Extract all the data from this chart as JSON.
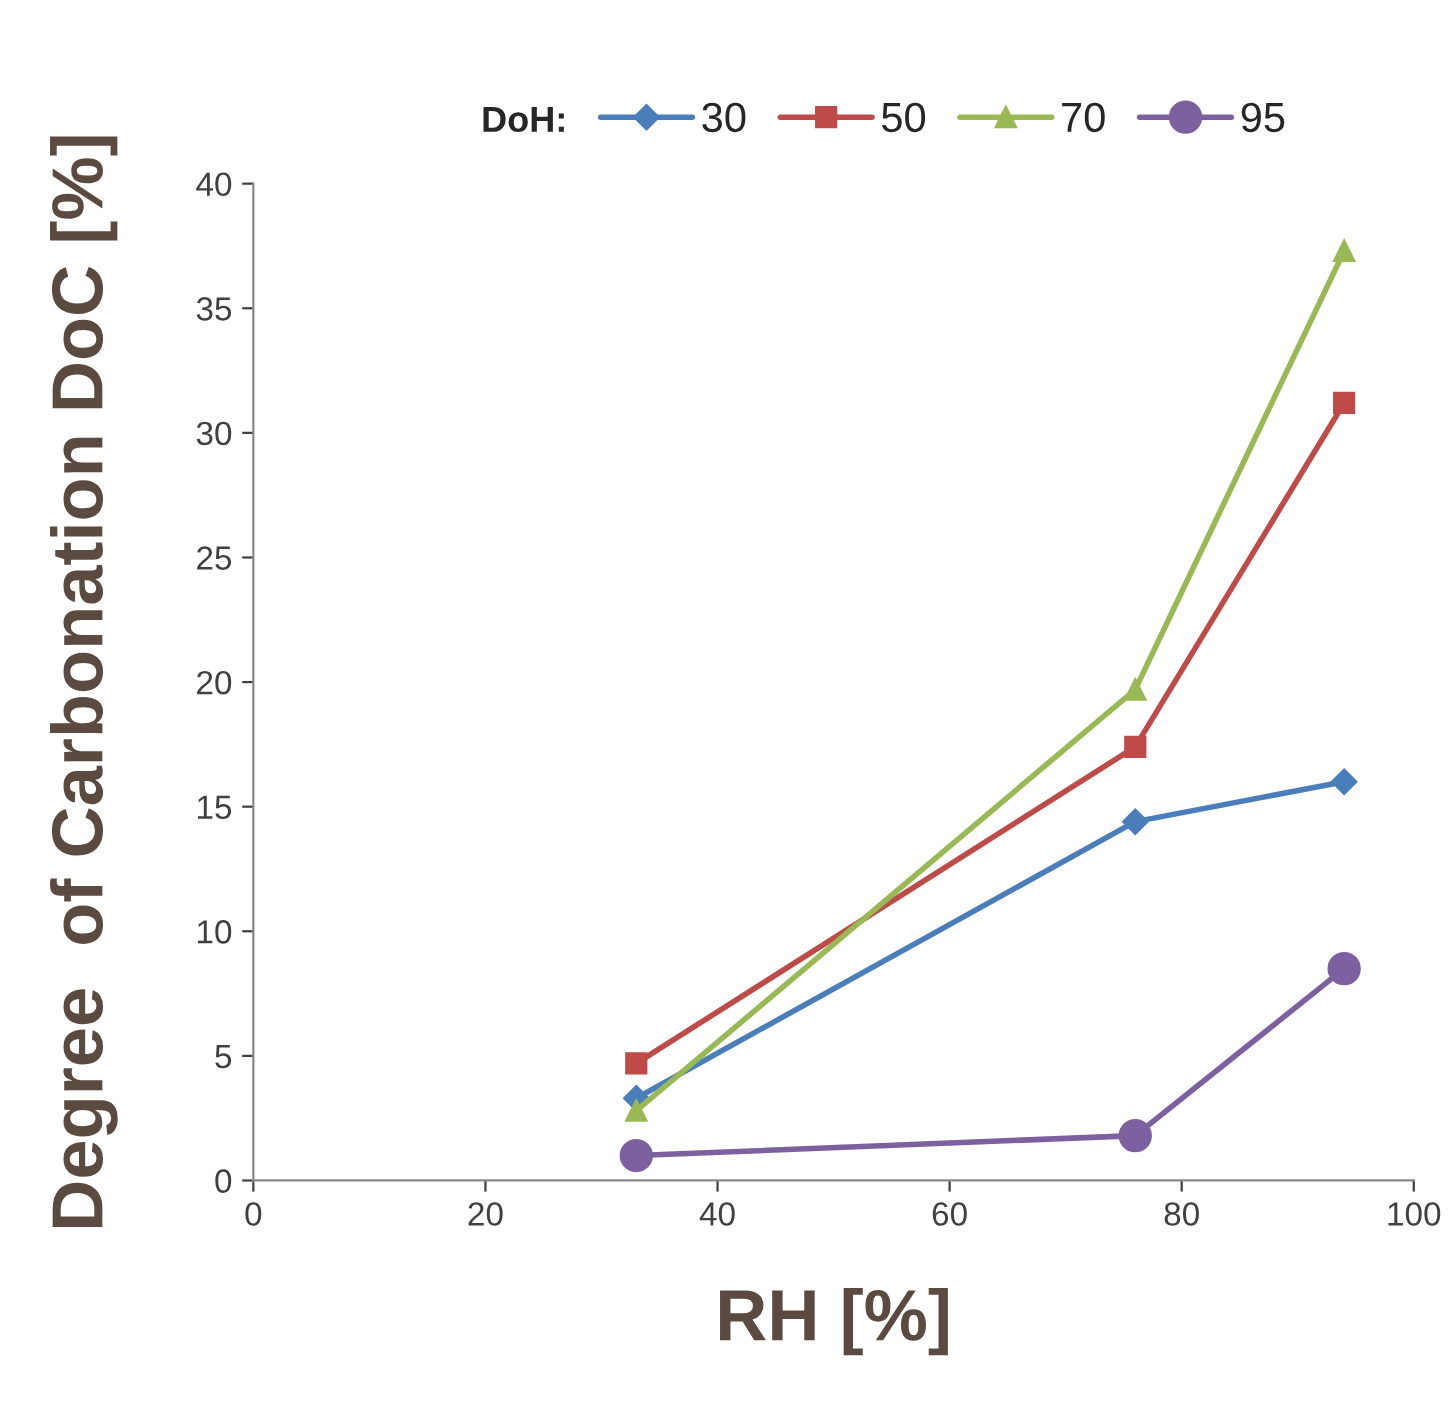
{
  "chart_data": {
    "type": "line",
    "xlabel": "RH [%]",
    "ylabel": "Degree  of Carbonation DoC [%]",
    "legend_title": "DoH:",
    "legend": "top",
    "grid": false,
    "xlim": [
      0,
      100
    ],
    "xticks": [
      0,
      20,
      40,
      60,
      80,
      100
    ],
    "ylim": [
      0,
      40
    ],
    "yticks": [
      0,
      5,
      10,
      15,
      20,
      25,
      30,
      35,
      40
    ],
    "series": [
      {
        "name": "30",
        "color": "#4a7ebb",
        "marker": "diamond",
        "x": [
          33,
          76,
          94
        ],
        "values": [
          3.3,
          14.4,
          16.0
        ]
      },
      {
        "name": "50",
        "color": "#be4b48",
        "marker": "square",
        "x": [
          33,
          76,
          94
        ],
        "values": [
          4.7,
          17.4,
          31.2
        ]
      },
      {
        "name": "70",
        "color": "#98b954",
        "marker": "triangle",
        "x": [
          33,
          76,
          94
        ],
        "values": [
          2.8,
          19.7,
          37.3
        ]
      },
      {
        "name": "95",
        "color": "#7d60a0",
        "marker": "circle",
        "x": [
          33,
          76,
          94
        ],
        "values": [
          1.0,
          1.8,
          8.5
        ]
      }
    ]
  }
}
